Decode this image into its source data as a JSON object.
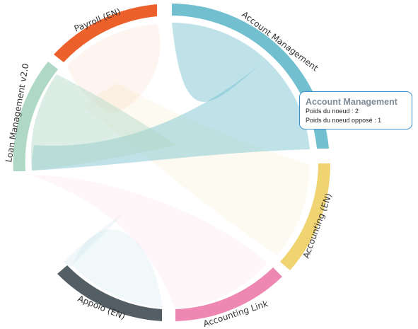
{
  "chart_data": {
    "type": "chord",
    "nodes": [
      {
        "name": "Account Management",
        "color": "#72bfcf"
      },
      {
        "name": "Accounting (EN)",
        "color": "#efd471"
      },
      {
        "name": "Accounting Link",
        "color": "#ee88b2"
      },
      {
        "name": "Appolo (EN)",
        "color": "#535f65"
      },
      {
        "name": "Loan Management v2.0",
        "color": "#afd8c6"
      },
      {
        "name": "Payroll (EN)",
        "color": "#ec612b"
      }
    ],
    "ribbons": [
      {
        "source": "Account Management",
        "target": "Loan Management v2.0",
        "color": "#72bfcf",
        "emphasis": "highlight"
      },
      {
        "source": "Account Management",
        "target": "Account Management",
        "color": "#72bfcf",
        "emphasis": "highlight"
      },
      {
        "source": "Loan Management v2.0",
        "target": "Accounting (EN)",
        "color": "#efd471",
        "emphasis": "faded"
      },
      {
        "source": "Payroll (EN)",
        "target": "Payroll (EN)",
        "color": "#ec612b",
        "emphasis": "faded"
      },
      {
        "source": "Loan Management v2.0",
        "target": "Accounting Link",
        "color": "#ee88b2",
        "emphasis": "faded"
      },
      {
        "source": "Appolo (EN)",
        "target": "Appolo (EN)",
        "color": "#8fc5d6",
        "emphasis": "faded"
      },
      {
        "source": "Loan Management v2.0",
        "target": "Appolo (EN)",
        "color": "#8fc5d6",
        "emphasis": "faded"
      }
    ]
  },
  "tooltip": {
    "title": "Account Management",
    "line1": "Poids du noeud : 2",
    "line2": "Poids du noeud opposé : 1"
  }
}
